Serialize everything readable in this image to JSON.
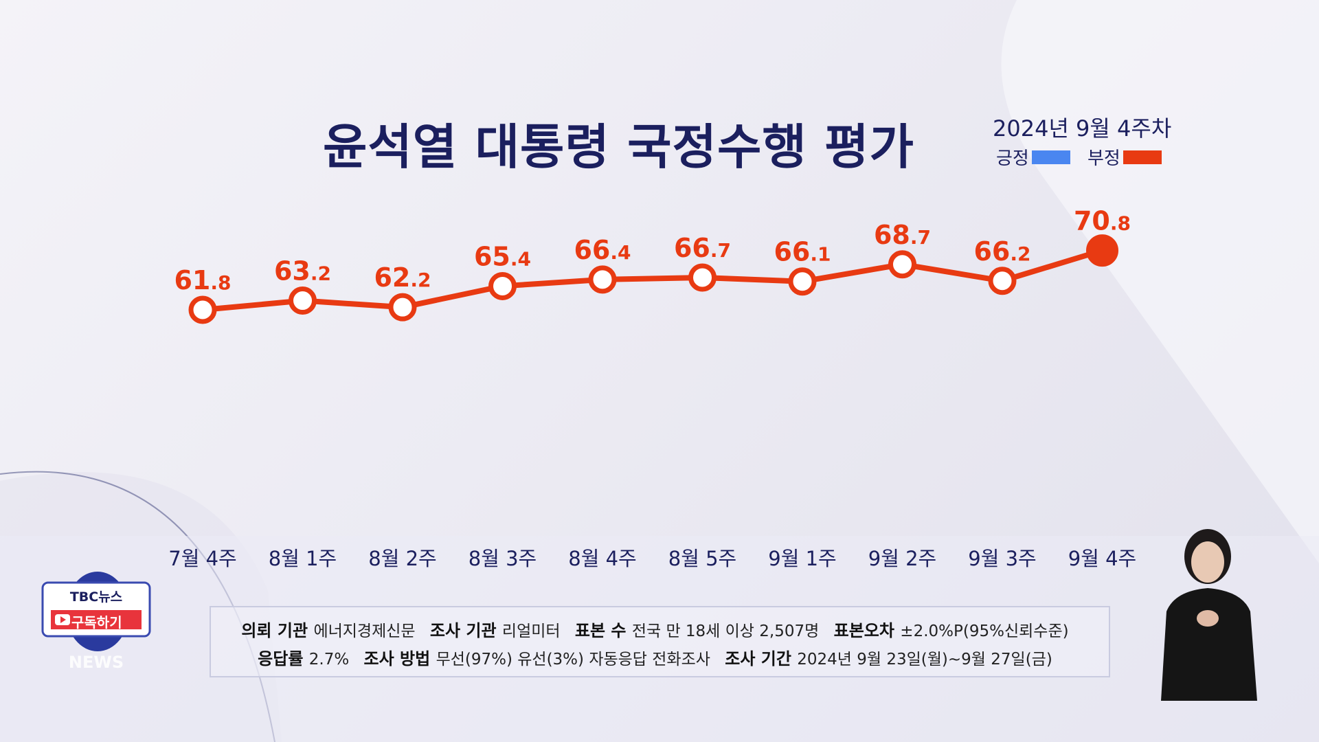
{
  "title": "윤석열 대통령 국정수행 평가",
  "legend": {
    "date": "2024년 9월 4주차",
    "positive": "긍정",
    "negative": "부정",
    "positive_color": "#4a86f0",
    "negative_color": "#e83a12"
  },
  "chart_data": {
    "type": "line",
    "title": "윤석열 대통령 국정수행 평가",
    "series": [
      {
        "name": "부정",
        "color": "#e83a12",
        "values": [
          61.8,
          63.2,
          62.2,
          65.4,
          66.4,
          66.7,
          66.1,
          68.7,
          66.2,
          70.8
        ]
      }
    ],
    "categories": [
      "7월 4주",
      "8월 1주",
      "8월 2주",
      "8월 3주",
      "8월 4주",
      "8월 5주",
      "9월 1주",
      "9월 2주",
      "9월 3주",
      "9월 4주"
    ],
    "value_labels": [
      [
        "61",
        ".8"
      ],
      [
        "63",
        ".2"
      ],
      [
        "62",
        ".2"
      ],
      [
        "65",
        ".4"
      ],
      [
        "66",
        ".4"
      ],
      [
        "66",
        ".7"
      ],
      [
        "66",
        ".1"
      ],
      [
        "68",
        ".7"
      ],
      [
        "66",
        ".2"
      ],
      [
        "70",
        ".8"
      ]
    ],
    "ylim": [
      55,
      75
    ],
    "grid": false
  },
  "info": {
    "line1": [
      [
        "의뢰 기관",
        "에너지경제신문"
      ],
      [
        "조사 기관",
        "리얼미터"
      ],
      [
        "표본 수",
        "전국 만 18세 이상 2,507명"
      ],
      [
        "표본오차",
        "±2.0%P(95%신뢰수준)"
      ]
    ],
    "line2": [
      [
        "응답률",
        "2.7%"
      ],
      [
        "조사 방법",
        "무선(97%) 유선(3%) 자동응답 전화조사"
      ],
      [
        "조사 기간",
        "2024년 9월 23일(월)~9월 27일(금)"
      ]
    ]
  },
  "logo": {
    "brand": "TBC뉴스",
    "subscribe": "구독하기",
    "news": "NEWS"
  }
}
